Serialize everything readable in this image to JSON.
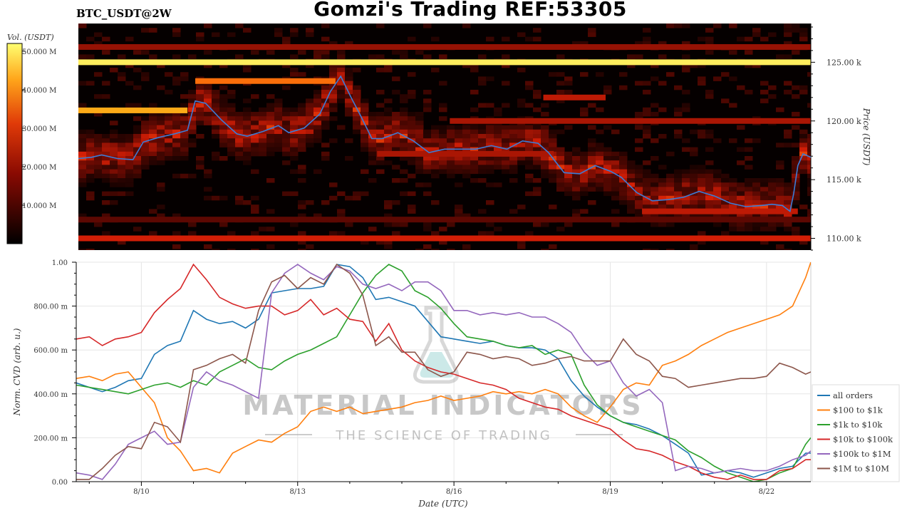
{
  "header": {
    "symbol": "BTC_USDT@2W",
    "title": "Gomzi's Trading REF:53305"
  },
  "watermark": {
    "brand": "MATERIAL INDICATORS",
    "tagline": "THE SCIENCE OF TRADING"
  },
  "colors": {
    "price_line": "#3b7dd8",
    "heatmap_low": "#000000",
    "heatmap_mid": "#c81e06",
    "heatmap_high": "#ffff66",
    "grid": "#e6e6e6"
  },
  "chart_data": [
    {
      "type": "heatmap",
      "panel": "orderbook",
      "colorbar_label": "Vol. (USDT)",
      "colorbar_ticks": [
        "10.000 M",
        "20.000 M",
        "30.000 M",
        "40.000 M",
        "50.000 M"
      ],
      "colorbar_range": [
        0,
        52
      ],
      "ylabel": "Price (USDT)",
      "y_ticks": [
        "110.00 k",
        "115.00 k",
        "120.00 k",
        "125.00 k"
      ],
      "ylim": [
        109,
        128.3
      ],
      "x_range_days": [
        8.85,
        22.95
      ],
      "price_series": {
        "name": "",
        "x": [
          8.85,
          9.1,
          9.3,
          9.6,
          9.9,
          10.1,
          10.4,
          10.7,
          10.95,
          11.1,
          11.3,
          11.6,
          11.9,
          12.1,
          12.4,
          12.7,
          12.9,
          13.2,
          13.5,
          13.7,
          13.9,
          14.1,
          14.3,
          14.5,
          14.7,
          15.0,
          15.3,
          15.6,
          15.9,
          16.2,
          16.5,
          16.8,
          17.1,
          17.4,
          17.7,
          17.9,
          18.2,
          18.5,
          18.8,
          19.1,
          19.3,
          19.6,
          19.9,
          20.2,
          20.5,
          20.8,
          21.1,
          21.4,
          21.7,
          22.0,
          22.2,
          22.4,
          22.55,
          22.62,
          22.7,
          22.8,
          22.95
        ],
        "y": [
          116.8,
          116.9,
          117.1,
          116.8,
          116.7,
          118.2,
          118.6,
          118.9,
          119.2,
          121.7,
          121.5,
          120.1,
          118.9,
          118.7,
          119.1,
          119.6,
          119.0,
          119.4,
          120.6,
          122.5,
          123.8,
          122.0,
          120.3,
          118.5,
          118.5,
          119.0,
          118.3,
          117.3,
          117.6,
          117.6,
          117.6,
          117.9,
          117.6,
          118.3,
          118.1,
          117.3,
          115.6,
          115.5,
          116.2,
          115.7,
          115.2,
          113.9,
          113.2,
          113.3,
          113.5,
          114.0,
          113.6,
          113.0,
          112.7,
          112.8,
          112.9,
          112.8,
          112.3,
          113.8,
          116.2,
          117.2,
          116.9
        ]
      },
      "bands": [
        {
          "price": 125.0,
          "x0": 8.85,
          "x1": 22.95,
          "intensity": 0.97
        },
        {
          "price": 126.3,
          "x0": 8.85,
          "x1": 22.95,
          "intensity": 0.4
        },
        {
          "price": 110.0,
          "x0": 8.85,
          "x1": 22.95,
          "intensity": 0.55
        },
        {
          "price": 111.6,
          "x0": 8.85,
          "x1": 22.95,
          "intensity": 0.25
        },
        {
          "price": 120.9,
          "x0": 8.85,
          "x1": 10.95,
          "intensity": 0.85
        },
        {
          "price": 123.4,
          "x0": 11.1,
          "x1": 13.8,
          "intensity": 0.75
        },
        {
          "price": 120.0,
          "x0": 16.0,
          "x1": 22.95,
          "intensity": 0.45
        },
        {
          "price": 122.0,
          "x0": 17.8,
          "x1": 19.0,
          "intensity": 0.5
        },
        {
          "price": 112.3,
          "x0": 19.7,
          "x1": 22.7,
          "intensity": 0.5
        },
        {
          "price": 117.2,
          "x0": 14.6,
          "x1": 18.0,
          "intensity": 0.45
        }
      ]
    },
    {
      "type": "line",
      "panel": "cvd",
      "xlabel": "Date (UTC)",
      "ylabel": "Norm. CVD (arb. u.)",
      "ylim": [
        0,
        1
      ],
      "y_ticks": [
        "0.00",
        "200.00 m",
        "400.00 m",
        "600.00 m",
        "800.00 m",
        "1.00"
      ],
      "x_ticks": [
        {
          "day": 10,
          "label": "8/10"
        },
        {
          "day": 13,
          "label": "8/13"
        },
        {
          "day": 16,
          "label": "8/16"
        },
        {
          "day": 19,
          "label": "8/19"
        },
        {
          "day": 22,
          "label": "8/22"
        }
      ],
      "x_range_days": [
        8.75,
        22.85
      ],
      "x": [
        8.75,
        9.0,
        9.25,
        9.5,
        9.75,
        10.0,
        10.25,
        10.5,
        10.75,
        11.0,
        11.25,
        11.5,
        11.75,
        12.0,
        12.25,
        12.5,
        12.75,
        13.0,
        13.25,
        13.5,
        13.75,
        14.0,
        14.25,
        14.5,
        14.75,
        15.0,
        15.25,
        15.5,
        15.75,
        16.0,
        16.25,
        16.5,
        16.75,
        17.0,
        17.25,
        17.5,
        17.75,
        18.0,
        18.25,
        18.5,
        18.75,
        19.0,
        19.25,
        19.5,
        19.75,
        20.0,
        20.25,
        20.5,
        20.75,
        21.0,
        21.25,
        21.5,
        21.75,
        22.0,
        22.25,
        22.5,
        22.75,
        22.85
      ],
      "series": [
        {
          "name": "all orders",
          "color": "#1f77b4",
          "values": [
            0.45,
            0.43,
            0.41,
            0.43,
            0.46,
            0.47,
            0.58,
            0.62,
            0.64,
            0.78,
            0.74,
            0.72,
            0.73,
            0.7,
            0.74,
            0.86,
            0.87,
            0.88,
            0.88,
            0.89,
            0.99,
            0.98,
            0.93,
            0.83,
            0.84,
            0.82,
            0.8,
            0.73,
            0.66,
            0.65,
            0.64,
            0.63,
            0.64,
            0.62,
            0.61,
            0.61,
            0.6,
            0.56,
            0.46,
            0.39,
            0.34,
            0.3,
            0.27,
            0.26,
            0.24,
            0.21,
            0.17,
            0.13,
            0.03,
            0.04,
            0.05,
            0.04,
            0.02,
            0.04,
            0.06,
            0.07,
            0.13,
            0.13
          ]
        },
        {
          "name": "$100 to $1k",
          "color": "#ff7f0e",
          "values": [
            0.47,
            0.48,
            0.46,
            0.49,
            0.5,
            0.43,
            0.36,
            0.2,
            0.14,
            0.05,
            0.06,
            0.04,
            0.13,
            0.16,
            0.19,
            0.18,
            0.22,
            0.25,
            0.32,
            0.34,
            0.32,
            0.34,
            0.31,
            0.32,
            0.33,
            0.34,
            0.36,
            0.37,
            0.39,
            0.37,
            0.38,
            0.39,
            0.41,
            0.4,
            0.41,
            0.4,
            0.42,
            0.4,
            0.34,
            0.3,
            0.27,
            0.34,
            0.42,
            0.45,
            0.44,
            0.53,
            0.55,
            0.58,
            0.62,
            0.65,
            0.68,
            0.7,
            0.72,
            0.74,
            0.76,
            0.8,
            0.93,
            1.0
          ]
        },
        {
          "name": "$1k to $10k",
          "color": "#2ca02c",
          "values": [
            0.44,
            0.43,
            0.42,
            0.41,
            0.4,
            0.42,
            0.44,
            0.45,
            0.43,
            0.46,
            0.44,
            0.5,
            0.53,
            0.56,
            0.52,
            0.51,
            0.55,
            0.58,
            0.6,
            0.63,
            0.66,
            0.76,
            0.86,
            0.94,
            0.99,
            0.96,
            0.87,
            0.84,
            0.79,
            0.72,
            0.66,
            0.65,
            0.64,
            0.62,
            0.61,
            0.62,
            0.58,
            0.6,
            0.58,
            0.44,
            0.35,
            0.3,
            0.27,
            0.25,
            0.23,
            0.21,
            0.19,
            0.14,
            0.11,
            0.07,
            0.04,
            0.02,
            0.0,
            0.01,
            0.04,
            0.06,
            0.17,
            0.2
          ]
        },
        {
          "name": "$10k to $100k",
          "color": "#d62728",
          "values": [
            0.65,
            0.66,
            0.62,
            0.65,
            0.66,
            0.68,
            0.77,
            0.83,
            0.88,
            0.99,
            0.92,
            0.84,
            0.81,
            0.79,
            0.8,
            0.8,
            0.76,
            0.78,
            0.83,
            0.76,
            0.79,
            0.74,
            0.73,
            0.64,
            0.72,
            0.6,
            0.55,
            0.52,
            0.5,
            0.49,
            0.47,
            0.45,
            0.44,
            0.42,
            0.38,
            0.36,
            0.34,
            0.33,
            0.3,
            0.28,
            0.26,
            0.24,
            0.19,
            0.15,
            0.14,
            0.12,
            0.09,
            0.07,
            0.04,
            0.02,
            0.01,
            0.03,
            0.01,
            0.01,
            0.05,
            0.06,
            0.1,
            0.1
          ]
        },
        {
          "name": "$100k to $1M",
          "color": "#9467bd",
          "values": [
            0.04,
            0.03,
            0.01,
            0.08,
            0.17,
            0.2,
            0.23,
            0.17,
            0.18,
            0.43,
            0.5,
            0.46,
            0.44,
            0.41,
            0.38,
            0.86,
            0.95,
            0.99,
            0.95,
            0.92,
            0.98,
            0.96,
            0.9,
            0.88,
            0.9,
            0.87,
            0.91,
            0.91,
            0.87,
            0.78,
            0.78,
            0.76,
            0.77,
            0.76,
            0.77,
            0.75,
            0.75,
            0.72,
            0.68,
            0.59,
            0.53,
            0.55,
            0.45,
            0.39,
            0.42,
            0.36,
            0.05,
            0.07,
            0.06,
            0.04,
            0.05,
            0.06,
            0.05,
            0.05,
            0.07,
            0.1,
            0.12,
            0.14
          ]
        },
        {
          "name": "$1M to $10M",
          "color": "#8c564b",
          "values": [
            0.01,
            0.01,
            0.06,
            0.12,
            0.16,
            0.15,
            0.27,
            0.25,
            0.18,
            0.51,
            0.53,
            0.56,
            0.58,
            0.54,
            0.78,
            0.91,
            0.94,
            0.88,
            0.93,
            0.9,
            0.99,
            0.95,
            0.85,
            0.62,
            0.66,
            0.59,
            0.59,
            0.51,
            0.48,
            0.5,
            0.59,
            0.58,
            0.56,
            0.57,
            0.56,
            0.53,
            0.54,
            0.56,
            0.57,
            0.55,
            0.55,
            0.55,
            0.65,
            0.58,
            0.55,
            0.48,
            0.47,
            0.43,
            0.44,
            0.45,
            0.46,
            0.47,
            0.47,
            0.48,
            0.54,
            0.52,
            0.49,
            0.5
          ]
        }
      ]
    }
  ]
}
